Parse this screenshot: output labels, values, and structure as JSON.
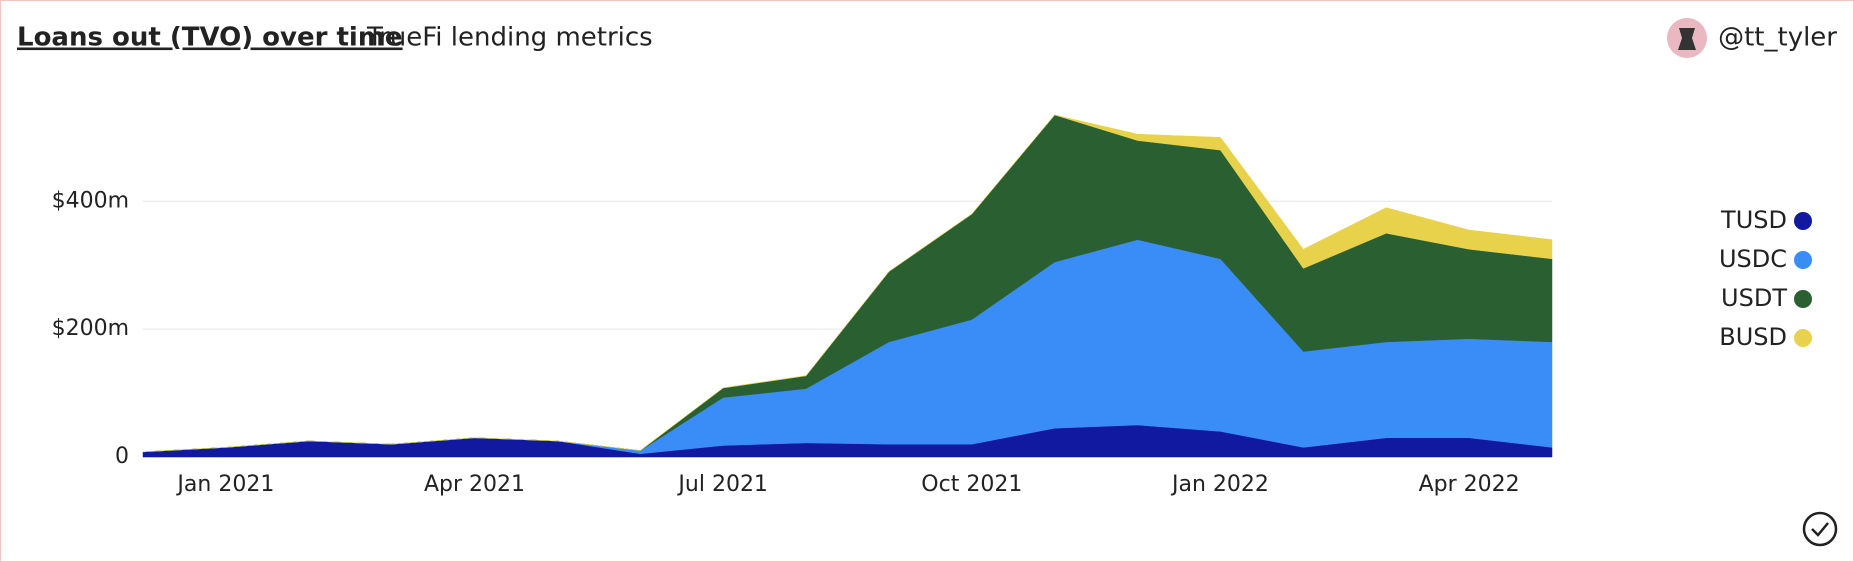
{
  "chart_data": {
    "type": "area",
    "stacked": true,
    "title": "Loans out (TVO) over time",
    "subtitle": "TrueFi lending metrics",
    "author": "@tt_tyler",
    "x": [
      "2020-12",
      "2021-01",
      "2021-02",
      "2021-03",
      "2021-04",
      "2021-05",
      "2021-06",
      "2021-07",
      "2021-08",
      "2021-09",
      "2021-10",
      "2021-11",
      "2021-12",
      "2022-01",
      "2022-02",
      "2022-03",
      "2022-04",
      "2022-05"
    ],
    "xlim": [
      "2020-12",
      "2022-05"
    ],
    "xticks": [
      {
        "value": "2021-01",
        "label": "Jan 2021"
      },
      {
        "value": "2021-04",
        "label": "Apr 2021"
      },
      {
        "value": "2021-07",
        "label": "Jul 2021"
      },
      {
        "value": "2021-10",
        "label": "Oct 2021"
      },
      {
        "value": "2022-01",
        "label": "Jan 2022"
      },
      {
        "value": "2022-04",
        "label": "Apr 2022"
      }
    ],
    "ylim": [
      0,
      560
    ],
    "yticks": [
      {
        "value": 0,
        "label": "0"
      },
      {
        "value": 200,
        "label": "$200m"
      },
      {
        "value": 400,
        "label": "$400m"
      }
    ],
    "grid": true,
    "legend": "right",
    "series": [
      {
        "name": "TUSD",
        "color": "#1119a0",
        "values": [
          8,
          15,
          25,
          20,
          30,
          25,
          5,
          18,
          22,
          20,
          20,
          45,
          50,
          40,
          15,
          30,
          30,
          15
        ]
      },
      {
        "name": "USDC",
        "color": "#3a8cf7",
        "values": [
          0,
          0,
          0,
          0,
          0,
          0,
          5,
          75,
          85,
          160,
          195,
          260,
          290,
          270,
          150,
          150,
          155,
          165
        ]
      },
      {
        "name": "USDT",
        "color": "#2a6031",
        "values": [
          0,
          0,
          0,
          0,
          0,
          0,
          0,
          15,
          20,
          110,
          165,
          230,
          155,
          170,
          130,
          170,
          140,
          130
        ]
      },
      {
        "name": "BUSD",
        "color": "#e8d24b",
        "values": [
          0,
          0,
          0,
          0,
          0,
          0,
          0,
          0,
          0,
          0,
          0,
          0,
          10,
          20,
          30,
          40,
          30,
          30
        ]
      }
    ]
  }
}
